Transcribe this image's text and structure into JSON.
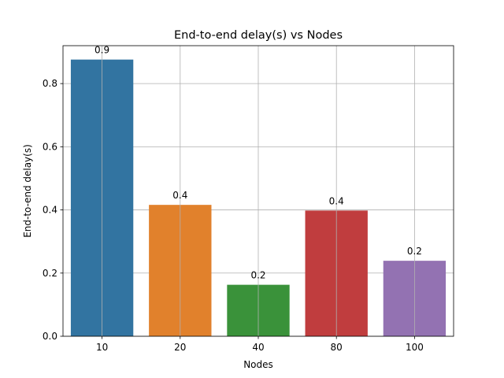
{
  "chart_data": {
    "type": "bar",
    "title": "End-to-end delay(s) vs Nodes",
    "xlabel": "Nodes",
    "ylabel": "End-to-end delay(s)",
    "categories": [
      "10",
      "20",
      "40",
      "80",
      "100"
    ],
    "values": [
      0.876,
      0.416,
      0.163,
      0.398,
      0.239
    ],
    "data_labels": [
      "0.9",
      "0.4",
      "0.2",
      "0.4",
      "0.2"
    ],
    "ylim": [
      0,
      0.92
    ],
    "yticks": [
      0.0,
      0.2,
      0.4,
      0.6,
      0.8
    ],
    "ytick_labels": [
      "0.0",
      "0.2",
      "0.4",
      "0.6",
      "0.8"
    ],
    "grid": true,
    "colors": [
      "#3274a1",
      "#e1812c",
      "#3a923a",
      "#c03d3e",
      "#9372b2"
    ]
  }
}
